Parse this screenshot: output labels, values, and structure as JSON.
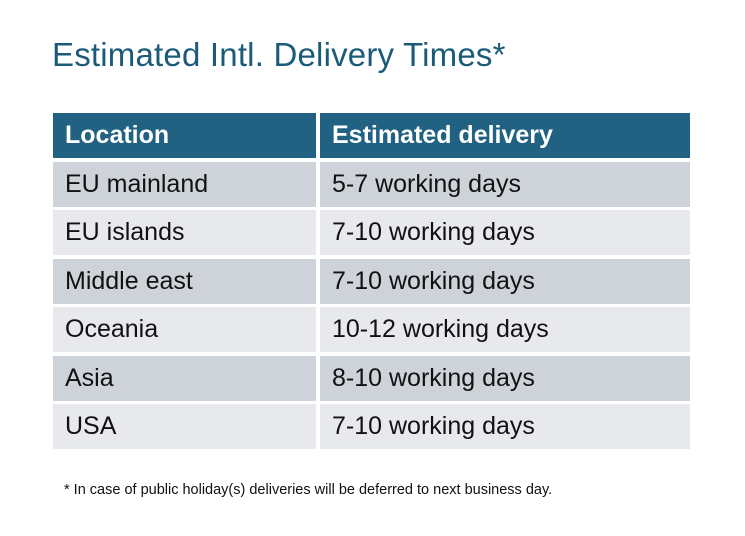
{
  "title": "Estimated Intl. Delivery Times*",
  "table": {
    "headers": [
      "Location",
      "Estimated delivery"
    ],
    "rows": [
      [
        "EU mainland",
        "5-7 working days"
      ],
      [
        "EU islands",
        "7-10 working days"
      ],
      [
        "Middle east",
        "7-10 working days"
      ],
      [
        "Oceania",
        "10-12 working days"
      ],
      [
        "Asia",
        "8-10 working days"
      ],
      [
        "USA",
        "7-10 working days"
      ]
    ]
  },
  "footnote": "* In case of public holiday(s) deliveries will be deferred to next business day.",
  "colors": {
    "header": "#216182",
    "title": "#1b5a78",
    "row_dark": "#ced2d9",
    "row_light": "#e7e9ec"
  }
}
